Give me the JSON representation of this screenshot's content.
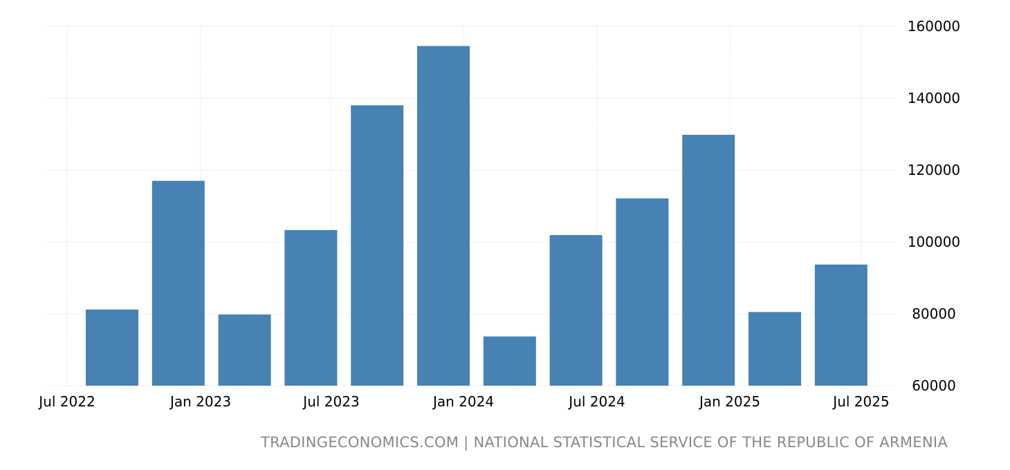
{
  "chart_data": {
    "type": "bar",
    "categories": [
      "Q3 2022",
      "Q4 2022",
      "Q1 2023",
      "Q2 2023",
      "Q3 2023",
      "Q4 2023",
      "Q1 2024",
      "Q2 2024",
      "Q3 2024",
      "Q4 2024",
      "Q1 2025",
      "Q2 2025"
    ],
    "values": [
      81200,
      117000,
      79800,
      103300,
      138000,
      154500,
      73700,
      101900,
      112100,
      129800,
      80500,
      93700
    ],
    "x_tick_labels": [
      "Jul 2022",
      "Jan 2023",
      "Jul 2023",
      "Jan 2024",
      "Jul 2024",
      "Jan 2025",
      "Jul 2025"
    ],
    "y_ticks": [
      "60000",
      "80000",
      "100000",
      "120000",
      "140000",
      "160000"
    ],
    "ylim": [
      60000,
      160000
    ],
    "bar_color": "#4682b4",
    "grid": true,
    "y_axis_side": "right",
    "title": "",
    "xlabel": "",
    "ylabel": ""
  },
  "source_text": "TRADINGECONOMICS.COM | NATIONAL STATISTICAL SERVICE OF THE REPUBLIC OF ARMENIA"
}
